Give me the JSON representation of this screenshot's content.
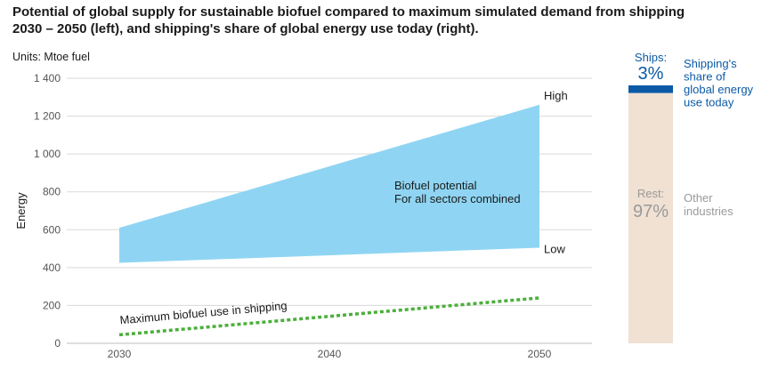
{
  "title_line1": "Potential of global supply for sustainable biofuel compared to maximum simulated demand from shipping",
  "title_line2": "2030 – 2050 (left), and shipping's share of global energy use today (right).",
  "units": "Units: Mtoe fuel",
  "colors": {
    "band": "#8fd5f3",
    "dotted": "#4caf3c",
    "ships": "#0b5aa6",
    "rest": "#f0e1d3",
    "ships_text": "#0b5aa6",
    "rest_text": "#9a9a9a",
    "grid": "#d9d9d9"
  },
  "chart_data": [
    {
      "type": "area",
      "ylabel": "Energy",
      "xlabel": "",
      "ylim": [
        0,
        1400
      ],
      "xlim": [
        2027.5,
        2052.5
      ],
      "y_ticks": [
        0,
        200,
        400,
        600,
        800,
        1000,
        1200,
        1400
      ],
      "y_tick_labels": [
        "0",
        "200",
        "400",
        "600",
        "800",
        "1 000",
        "1 200",
        "1 400"
      ],
      "x_ticks": [
        2030,
        2040,
        2050
      ],
      "x_tick_labels": [
        "2030",
        "2040",
        "2050"
      ],
      "grid": true,
      "series": [
        {
          "name": "Biofuel potential",
          "kind": "band",
          "x": [
            2030,
            2050
          ],
          "low": [
            425,
            505
          ],
          "high": [
            610,
            1260
          ]
        },
        {
          "name": "Maximum biofuel use in shipping",
          "kind": "dotted-line",
          "x": [
            2030,
            2050
          ],
          "values": [
            45,
            240
          ]
        }
      ],
      "annotations": {
        "high": "High",
        "low": "Low",
        "band_title": "Biofuel potential",
        "band_subtitle": "For all sectors combined",
        "line_label": "Maximum biofuel use in shipping"
      }
    },
    {
      "type": "bar",
      "stacked": true,
      "categories": [
        "Ships",
        "Rest"
      ],
      "values": [
        3,
        97
      ],
      "unit": "%",
      "labels": {
        "ships_name": "Ships:",
        "ships_value": "3%",
        "rest_name": "Rest:",
        "rest_value": "97%",
        "ships_desc": [
          "Shipping's",
          "share of",
          "global energy",
          "use today"
        ],
        "rest_desc": [
          "Other",
          "industries"
        ]
      }
    }
  ]
}
